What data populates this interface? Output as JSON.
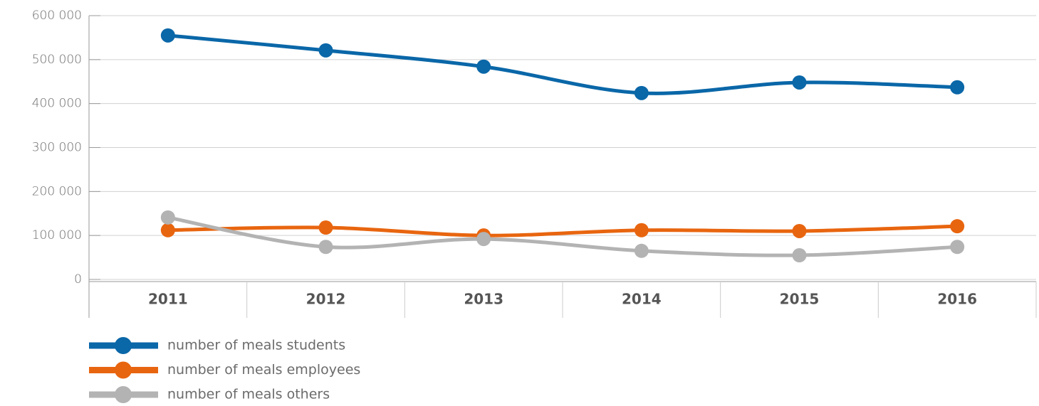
{
  "chart_data": {
    "type": "line",
    "categories": [
      "2011",
      "2012",
      "2013",
      "2014",
      "2015",
      "2016"
    ],
    "series": [
      {
        "name": "number of meals students",
        "color": "#0a67a8",
        "values": [
          555000,
          521000,
          484000,
          424000,
          448000,
          437000
        ]
      },
      {
        "name": "number of meals employees",
        "color": "#e8650f",
        "values": [
          112000,
          118000,
          100000,
          112000,
          110000,
          121000
        ]
      },
      {
        "name": "number of meals others",
        "color": "#b3b3b3",
        "values": [
          141000,
          74000,
          92000,
          65000,
          55000,
          74000
        ]
      }
    ],
    "ylim": [
      0,
      600000
    ],
    "yticks": [
      0,
      {
        "value": 100000,
        "label": "100 000"
      },
      {
        "value": 200000,
        "label": "200 000"
      },
      {
        "value": 300000,
        "label": "300 000"
      },
      {
        "value": 400000,
        "label": "400 000"
      },
      {
        "value": 500000,
        "label": "500 000"
      },
      {
        "value": 600000,
        "label": "600 000"
      }
    ],
    "grid": true,
    "legend": "bottom"
  }
}
